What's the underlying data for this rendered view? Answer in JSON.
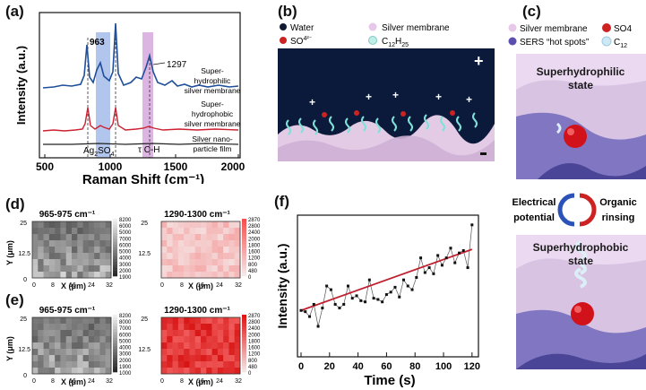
{
  "panels": {
    "a": {
      "label": "(a)",
      "ylabel": "Intensity (a.u.)",
      "xlabel": "Raman Shift (cm⁻¹)",
      "xticks": [
        "500",
        "1000",
        "1500",
        "2000"
      ],
      "peak_963": "963",
      "peak_1297": "1297",
      "ann_ag2so4_main": "Ag",
      "ann_ag2so4_sub1": "2",
      "ann_ag2so4_so": "SO",
      "ann_ag2so4_sub2": "4",
      "ann_tau": "τ C-H",
      "curve_labels": [
        "Super-",
        "hydrophilic",
        "silver membrane",
        "Super-",
        "hydrophobic",
        "silver membrane",
        "Silver nano-",
        "particle film"
      ],
      "colors": {
        "blue": "#1f4e9a",
        "red": "#cc2233",
        "black": "#222222",
        "band_blue": "#9fb7e8",
        "band_purple": "#d7a8dd"
      }
    },
    "b": {
      "label": "(b)",
      "legend": {
        "water": "Water",
        "silver": "Silver membrane",
        "so4": "SO",
        "so4_sup": "4²⁻",
        "c12": "C",
        "c12_sub1": "12",
        "c12_h": "H",
        "c12_sub2": "25"
      },
      "plus": "+",
      "colors": {
        "water": "#111a33",
        "so4": "#cc2222",
        "silver": "#e8c8e8",
        "chain": "#7fe0d8",
        "bg": "#0b1a3a"
      }
    },
    "c": {
      "label": "(c)",
      "legend": {
        "silver": "Silver  membrane",
        "so4": "SO4",
        "hotspots": "SERS “hot spots”",
        "c12": "C",
        "c12_sub": "12"
      },
      "top_state": [
        "Superhydrophilic",
        "state"
      ],
      "bottom_state": [
        "Superhydrophobic",
        "state"
      ],
      "arrows_left": [
        "Electrical",
        "potential"
      ],
      "arrows_right": [
        "Organic",
        "rinsing"
      ]
    },
    "d": {
      "label": "(d)",
      "left_title": "965-975 cm⁻¹",
      "right_title": "1290-1300 cm⁻¹",
      "ylabel": "Y (μm)",
      "xlabel": "X (μm)",
      "yticks": [
        "25",
        "12.5",
        "0"
      ],
      "xticks": [
        "0",
        "8",
        "16",
        "24",
        "32"
      ],
      "cb_left": [
        "8200",
        "6000",
        "5000",
        "7000",
        "6000",
        "5000",
        "4000",
        "3000",
        "2000",
        "1900"
      ],
      "cb_right": [
        "2870",
        "2800",
        "2400",
        "2000",
        "1800",
        "1600",
        "1200",
        "800",
        "480",
        "0"
      ]
    },
    "e": {
      "label": "(e)",
      "left_title": "965-975 cm⁻¹",
      "right_title": "1290-1300 cm⁻¹",
      "ylabel": "Y (μm)",
      "xlabel": "X (μm)",
      "yticks": [
        "25",
        "12.5",
        "0"
      ],
      "xticks": [
        "0",
        "8",
        "16",
        "24",
        "32"
      ],
      "cb_left": [
        "8200",
        "8000",
        "7000",
        "6000",
        "5000",
        "4000",
        "3000",
        "2000",
        "1900",
        "1000"
      ],
      "cb_right": [
        "2870",
        "2800",
        "2400",
        "2000",
        "1800",
        "1600",
        "1200",
        "800",
        "480",
        "0"
      ]
    },
    "f": {
      "label": "(f)",
      "ylabel": "Intensity (a.u.)",
      "xlabel": "Time (s)",
      "xticks": [
        "0",
        "20",
        "40",
        "60",
        "80",
        "100",
        "120"
      ]
    }
  },
  "chart_data": [
    {
      "type": "line",
      "panel": "f",
      "x": [
        0,
        3,
        6,
        9,
        12,
        15,
        18,
        21,
        24,
        27,
        30,
        33,
        36,
        39,
        42,
        45,
        48,
        51,
        54,
        57,
        60,
        63,
        66,
        69,
        72,
        75,
        78,
        81,
        84,
        87,
        90,
        93,
        96,
        99,
        102,
        105,
        108,
        111,
        114,
        117,
        120
      ],
      "series": [
        {
          "values": [
            0.35,
            0.34,
            0.3,
            0.4,
            0.22,
            0.37,
            0.55,
            0.52,
            0.4,
            0.37,
            0.4,
            0.55,
            0.45,
            0.47,
            0.43,
            0.42,
            0.6,
            0.45,
            0.44,
            0.42,
            0.48,
            0.5,
            0.54,
            0.46,
            0.6,
            0.55,
            0.52,
            0.62,
            0.78,
            0.66,
            0.7,
            0.65,
            0.8,
            0.72,
            0.78,
            0.86,
            0.74,
            0.82,
            0.84,
            0.7,
            1.05
          ]
        }
      ],
      "fit": {
        "x": [
          0,
          120
        ],
        "values": [
          0.35,
          0.85
        ]
      },
      "xlim": [
        0,
        122
      ],
      "ylim": [
        0,
        1.1
      ],
      "xlabel": "Time (s)",
      "ylabel": "Intensity (a.u.)",
      "colors": {
        "points": "#111111",
        "line": "#555555",
        "fit": "#c02030"
      }
    }
  ]
}
